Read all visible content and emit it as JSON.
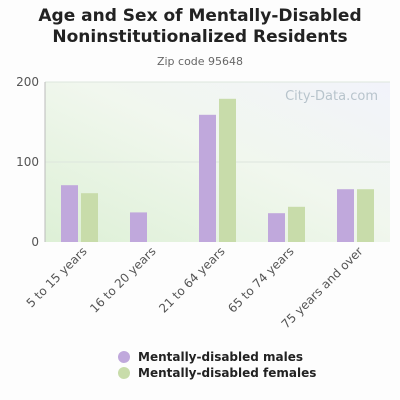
{
  "title_line1": "Age and Sex of Mentally-Disabled",
  "title_line2": "Noninstitutionalized Residents",
  "subtitle": "Zip code 95648",
  "watermark": "City-Data.com",
  "colors": {
    "males": "#c0a8dc",
    "females": "#c8dcaa"
  },
  "chart_data": {
    "type": "bar",
    "categories": [
      "5 to 15 years",
      "16 to 20 years",
      "21 to 64 years",
      "65 to 74 years",
      "75 years and over"
    ],
    "series": [
      {
        "name": "Mentally-disabled males",
        "values": [
          71,
          37,
          159,
          36,
          66
        ]
      },
      {
        "name": "Mentally-disabled females",
        "values": [
          61,
          0,
          179,
          44,
          66
        ]
      }
    ],
    "yticks": [
      "0",
      "100",
      "200"
    ],
    "ylim": [
      0,
      200
    ],
    "grid": true,
    "legend_position": "bottom"
  }
}
